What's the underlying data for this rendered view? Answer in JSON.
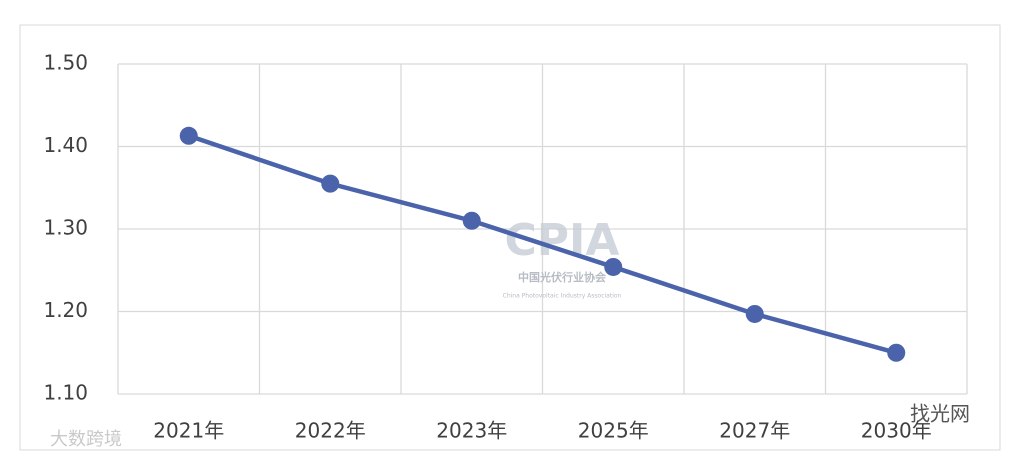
{
  "chart_data": {
    "type": "line",
    "categories": [
      "2021年",
      "2022年",
      "2023年",
      "2025年",
      "2027年",
      "2030年"
    ],
    "series": [
      {
        "name": null,
        "color": "#4a63ab",
        "values": [
          1.413,
          1.355,
          1.31,
          1.254,
          1.197,
          1.15
        ]
      }
    ],
    "ylim": [
      1.1,
      1.5
    ],
    "yticks": [
      {
        "value": 1.1,
        "label": "1.10"
      },
      {
        "value": 1.2,
        "label": "1.20"
      },
      {
        "value": 1.3,
        "label": "1.30"
      },
      {
        "value": 1.4,
        "label": "1.40"
      },
      {
        "value": 1.5,
        "label": "1.50"
      }
    ],
    "grid": true,
    "watermarks": [
      "CPIA",
      "中国光伏行业协会",
      "China Photovoltaic Industry Association",
      "大数跨境",
      "找光网"
    ]
  }
}
